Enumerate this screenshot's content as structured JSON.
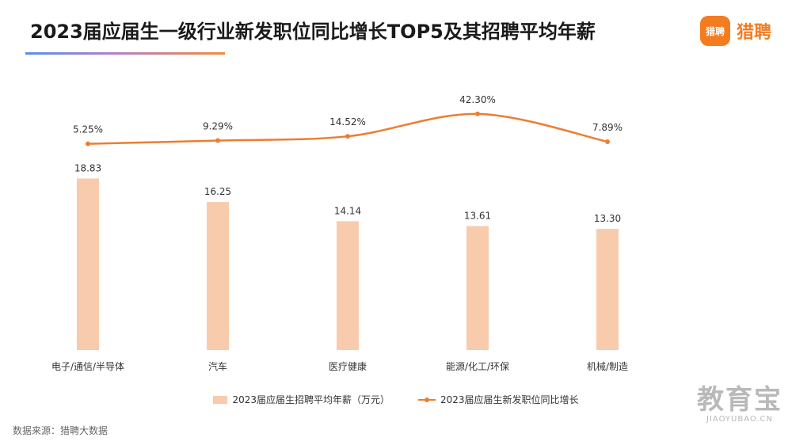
{
  "header": {
    "title": "2023届应届生一级行业新发职位同比增长TOP5及其招聘平均年薪",
    "brand_icon_text": "猎聘",
    "brand_name": "猎聘"
  },
  "chart_data": {
    "type": "bar",
    "categories": [
      "电子/通信/半导体",
      "汽车",
      "医疗健康",
      "能源/化工/环保",
      "机械/制造"
    ],
    "series": [
      {
        "name": "2023届应届生招聘平均年薪（万元）",
        "type": "bar",
        "color": "#f8cbad",
        "values": [
          18.83,
          16.25,
          14.14,
          13.61,
          13.3
        ],
        "labels": [
          "18.83",
          "16.25",
          "14.14",
          "13.61",
          "13.30"
        ]
      },
      {
        "name": "2023届应届生新发职位同比增长",
        "type": "line",
        "color": "#ed7d31",
        "values": [
          5.25,
          9.29,
          14.52,
          42.3,
          7.89
        ],
        "labels": [
          "5.25%",
          "9.29%",
          "14.52%",
          "42.30%",
          "7.89%"
        ]
      }
    ],
    "legend_position": "bottom",
    "grid": false
  },
  "footer": {
    "source": "数据来源：猎聘大数据"
  },
  "watermark": {
    "main": "教育宝",
    "sub": "JIAOYUBAO.CN"
  }
}
